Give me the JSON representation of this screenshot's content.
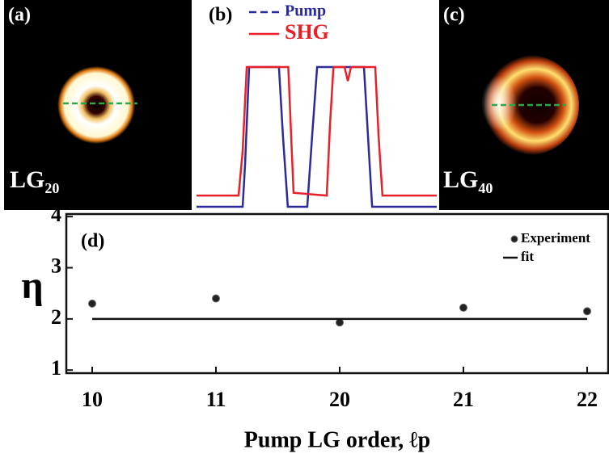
{
  "chart_data": [
    {
      "type": "image",
      "panel": "(a)",
      "label": "LG",
      "label_sub": "20"
    },
    {
      "type": "line",
      "panel": "(b)",
      "xlim": [
        0,
        100
      ],
      "ylim": [
        0,
        1
      ],
      "series": [
        {
          "name": "Pump",
          "color": "#2b2b9a",
          "dash": true,
          "x": [
            0,
            19.2,
            20.2,
            21.9,
            34.3,
            36,
            38,
            46.1,
            48.1,
            50.2,
            69.7,
            71.4,
            73.1,
            100
          ],
          "values": [
            0,
            0,
            0.3,
            1,
            1,
            0.5,
            0,
            0,
            0.5,
            1,
            1,
            0.5,
            0,
            0
          ]
        },
        {
          "name": "SHG",
          "color": "#e8202a",
          "dash": false,
          "x": [
            0,
            17.5,
            19.2,
            20.9,
            38.2,
            39.4,
            40.4,
            54.2,
            55.6,
            57,
            61.6,
            63,
            64.3,
            74.4,
            75.8,
            77.4,
            100
          ],
          "values": [
            0.08,
            0.08,
            0.4,
            1,
            1,
            0.5,
            0.1,
            0.08,
            0.6,
            1,
            1,
            0.9,
            1,
            1,
            0.5,
            0.08,
            0.08
          ]
        }
      ]
    },
    {
      "type": "image",
      "panel": "(c)",
      "label": "LG",
      "label_sub": "40"
    },
    {
      "type": "scatter",
      "panel": "(d)",
      "x_label": "Pump LG order, ℓp",
      "y_label": "η",
      "categories": [
        "10",
        "11",
        "20",
        "21",
        "22"
      ],
      "ylim": [
        0.94,
        4.05
      ],
      "yticks": [
        1,
        2,
        3,
        4
      ],
      "series": [
        {
          "name": "Experiment",
          "color": "#222222",
          "kind": "points",
          "values": [
            2.3,
            2.4,
            1.93,
            2.22,
            2.15
          ]
        },
        {
          "name": "fit",
          "color": "#111111",
          "kind": "line",
          "values": [
            2,
            2,
            2,
            2,
            2
          ]
        }
      ]
    }
  ]
}
